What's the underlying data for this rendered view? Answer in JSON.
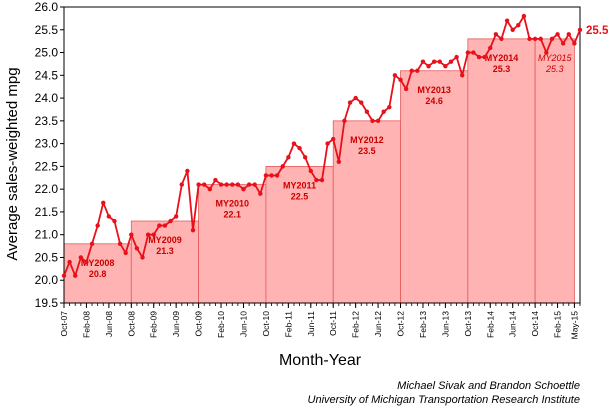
{
  "chart_data": {
    "type": "line",
    "title": "",
    "xlabel": "Month-Year",
    "ylabel": "Average sales-weighted mpg",
    "ylim": [
      19.5,
      26.0
    ],
    "yticks": [
      "19.5",
      "20.0",
      "20.5",
      "21.0",
      "21.5",
      "22.0",
      "22.5",
      "23.0",
      "23.5",
      "24.0",
      "24.5",
      "25.0",
      "25.5",
      "26.0"
    ],
    "grid": false,
    "x_start": "Oct-07",
    "x_end": "May-15",
    "xtick_labels": [
      "Oct-07",
      "Feb-08",
      "Jun-08",
      "Oct-08",
      "Feb-09",
      "Jun-09",
      "Oct-09",
      "Feb-10",
      "Jun-10",
      "Oct-10",
      "Feb-11",
      "Jun-11",
      "Oct-11",
      "Feb-12",
      "Jun-12",
      "Oct-12",
      "Feb-13",
      "Jun-13",
      "Oct-13",
      "Feb-14",
      "Jun-14",
      "Oct-14",
      "Feb-15",
      "May-15"
    ],
    "series": [
      {
        "values": [
          20.1,
          20.4,
          20.1,
          20.5,
          20.4,
          20.8,
          21.2,
          21.7,
          21.4,
          21.3,
          20.8,
          20.6,
          21.0,
          20.7,
          20.5,
          21.0,
          21.0,
          21.2,
          21.2,
          21.3,
          21.4,
          22.1,
          22.4,
          21.1,
          22.1,
          22.1,
          22.0,
          22.2,
          22.1,
          22.1,
          22.1,
          22.1,
          22.0,
          22.1,
          22.1,
          21.9,
          22.3,
          22.3,
          22.3,
          22.5,
          22.7,
          23.0,
          22.9,
          22.7,
          22.4,
          22.2,
          22.2,
          23.0,
          23.1,
          22.6,
          23.5,
          23.9,
          24.0,
          23.9,
          23.7,
          23.5,
          23.5,
          23.7,
          23.8,
          24.5,
          24.4,
          24.2,
          24.6,
          24.6,
          24.8,
          24.7,
          24.8,
          24.8,
          24.7,
          24.8,
          24.9,
          24.5,
          25.0,
          25.0,
          24.9,
          24.9,
          25.1,
          25.4,
          25.3,
          25.7,
          25.5,
          25.6,
          25.8,
          25.3,
          25.3,
          25.3,
          25.0,
          25.3,
          25.4,
          25.2,
          25.4,
          25.2,
          25.5
        ],
        "color": "#e8101a",
        "end_label": "25.5"
      }
    ],
    "model_years": [
      {
        "label": "MY2008",
        "value": 20.8,
        "value_label": "20.8",
        "start": "Oct-07",
        "end": "Oct-08",
        "italic": false
      },
      {
        "label": "MY2009",
        "value": 21.3,
        "value_label": "21.3",
        "start": "Oct-08",
        "end": "Oct-09",
        "italic": false
      },
      {
        "label": "MY2010",
        "value": 22.1,
        "value_label": "22.1",
        "start": "Oct-09",
        "end": "Oct-10",
        "italic": false
      },
      {
        "label": "MY2011",
        "value": 22.5,
        "value_label": "22.5",
        "start": "Oct-10",
        "end": "Oct-11",
        "italic": false
      },
      {
        "label": "MY2012",
        "value": 23.5,
        "value_label": "23.5",
        "start": "Oct-11",
        "end": "Oct-12",
        "italic": false
      },
      {
        "label": "MY2013",
        "value": 24.6,
        "value_label": "24.6",
        "start": "Oct-12",
        "end": "Oct-13",
        "italic": false
      },
      {
        "label": "MY2014",
        "value": 25.3,
        "value_label": "25.3",
        "start": "Oct-13",
        "end": "Oct-14",
        "italic": false
      },
      {
        "label": "MY2015",
        "value": 25.3,
        "value_label": "25.3",
        "start": "Oct-14",
        "end": "May-15",
        "italic": true
      }
    ],
    "colors": {
      "line": "#e8101a",
      "bar_fill": "#ffb3b3",
      "bar_edge": "#e85a5a",
      "bar_label": "#cc0000"
    }
  },
  "credits": {
    "line1": "Michael Sivak and Brandon Schoettle",
    "line2": "University of Michigan Transportation Research Institute"
  }
}
